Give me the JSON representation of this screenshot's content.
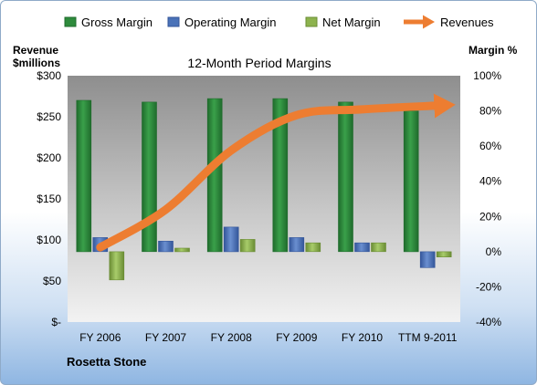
{
  "chart_data": {
    "type": "bar",
    "title": "12-Month Period Margins",
    "left_axis_title": [
      "Revenue",
      "$millions"
    ],
    "right_axis_title": "Margin %",
    "footer_label": "Rosetta Stone",
    "categories": [
      "FY 2006",
      "FY 2007",
      "FY 2008",
      "FY 2009",
      "FY 2010",
      "TTM 9-2011"
    ],
    "left_axis": {
      "min": 0,
      "max": 300,
      "ticks": [
        "$-",
        "$50",
        "$100",
        "$150",
        "$200",
        "$250",
        "$300"
      ]
    },
    "right_axis": {
      "min": -40,
      "max": 100,
      "ticks": [
        "-40%",
        "-20%",
        "0%",
        "20%",
        "40%",
        "60%",
        "80%",
        "100%"
      ]
    },
    "grid": false,
    "legend_position": "top",
    "series": [
      {
        "name": "Gross Margin",
        "axis": "right",
        "color": "#2e8b3c",
        "values": [
          86,
          85,
          87,
          87,
          85,
          80
        ]
      },
      {
        "name": "Operating Margin",
        "axis": "right",
        "color": "#4a72b8",
        "values": [
          8,
          6,
          14,
          8,
          5,
          -9
        ]
      },
      {
        "name": "Net Margin",
        "axis": "right",
        "color": "#8db34e",
        "values": [
          -16,
          2,
          7,
          5,
          5,
          -3
        ]
      },
      {
        "name": "Revenues",
        "axis": "left",
        "color": "#ed7d31",
        "type": "line",
        "values": [
          91,
          137,
          209,
          252,
          259,
          264
        ]
      }
    ]
  }
}
